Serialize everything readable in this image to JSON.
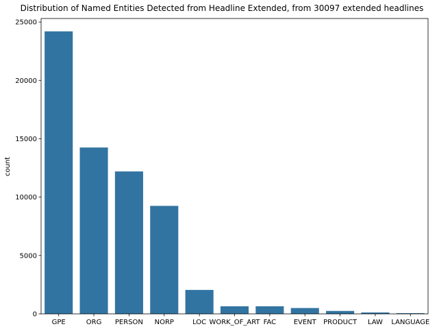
{
  "chart_data": {
    "type": "bar",
    "title": "Distribution of Named Entities Detected from Headline Extended, from 30097 extended headlines",
    "xlabel": "",
    "ylabel": "count",
    "categories": [
      "GPE",
      "ORG",
      "PERSON",
      "NORP",
      "LOC",
      "WORK_OF_ART",
      "FAC",
      "EVENT",
      "PRODUCT",
      "LAW",
      "LANGUAGE"
    ],
    "values": [
      24200,
      14250,
      12200,
      9250,
      2050,
      650,
      650,
      500,
      250,
      120,
      60
    ],
    "ylim": [
      0,
      25300
    ],
    "yticks": [
      0,
      5000,
      10000,
      15000,
      20000,
      25000
    ],
    "grid": false,
    "legend": "none",
    "bar_color": "#3274a1"
  }
}
